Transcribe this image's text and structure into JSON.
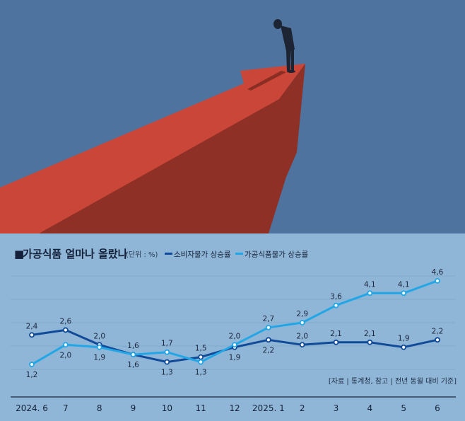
{
  "colors": {
    "sky": "#4f739f",
    "arrow_top": "#c94638",
    "arrow_side": "#8e3025",
    "chart_bg": "#8fb6d6",
    "cpi_line": "#114a98",
    "food_line": "#22a6e6",
    "grid": "#7ea4c4"
  },
  "illustration": {
    "subject": "person standing on tip of red arrow"
  },
  "title_marker": "■",
  "title": "가공식품 얼마나 올랐나",
  "unit": "(단위 : %)",
  "source": "[자료 | 통계청, 참고 | 전년 동월 대비 기준]",
  "chart_data": {
    "type": "line",
    "title": "가공식품 얼마나 올랐나",
    "unit": "(단위 : %)",
    "categories": [
      "2024. 6",
      "7",
      "8",
      "9",
      "10",
      "11",
      "12",
      "2025. 1",
      "2",
      "3",
      "4",
      "5",
      "6"
    ],
    "ylim": [
      1.0,
      4.8
    ],
    "grid": true,
    "legend_position": "top",
    "series": [
      {
        "name": "소비자물가 상승률",
        "values": [
          2.4,
          2.6,
          2.0,
          1.6,
          1.3,
          1.5,
          1.9,
          2.2,
          2.0,
          2.1,
          2.1,
          1.9,
          2.2
        ],
        "labels": [
          "2,4",
          "2,6",
          "2,0",
          "1,6",
          "1,3",
          "1,5",
          "1,9",
          "2,2",
          "2,0",
          "2,1",
          "2,1",
          "1,9",
          "2,2"
        ]
      },
      {
        "name": "가공식품물가 상승률",
        "values": [
          1.2,
          2.0,
          1.9,
          1.6,
          1.7,
          1.3,
          2.0,
          2.7,
          2.9,
          3.6,
          4.1,
          4.1,
          4.6
        ],
        "labels": [
          "1,2",
          "2,0",
          "1,9",
          "1,6",
          "1,7",
          "1,3",
          "2,0",
          "2,7",
          "2,9",
          "3,6",
          "4,1",
          "4,1",
          "4,6"
        ]
      }
    ]
  }
}
